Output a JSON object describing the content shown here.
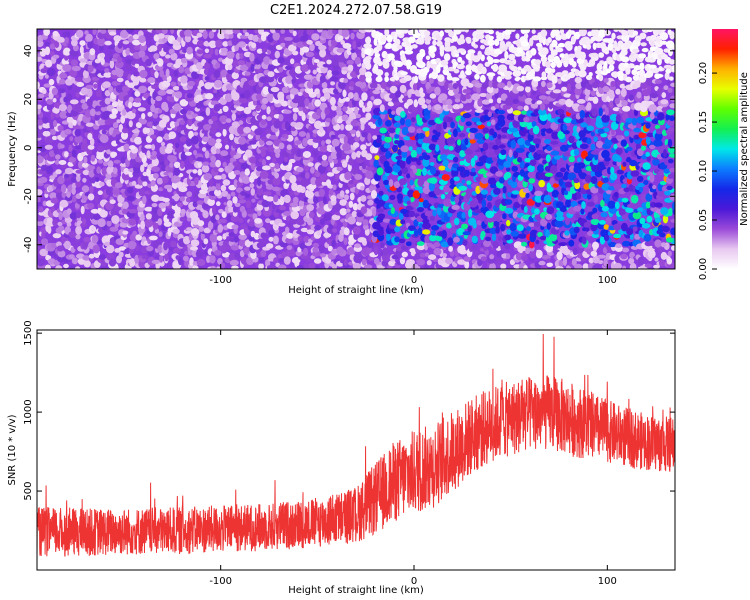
{
  "title": "C2E1.2024.272.07.58.G19",
  "chart_data": [
    {
      "type": "heatmap",
      "xlabel": "Height of straight line (km)",
      "ylabel": "Frequency (Hz)",
      "xlim": [
        -195,
        135
      ],
      "ylim": [
        -50,
        49
      ],
      "x_ticks": [
        -100,
        0,
        100
      ],
      "y_ticks": [
        40,
        20,
        0,
        -20,
        -40
      ],
      "colorbar": {
        "label": "Normalized spectral amplitude",
        "range": [
          0,
          0.245
        ],
        "ticks": [
          "0.00",
          "0.05",
          "0.10",
          "0.15",
          "0.20"
        ],
        "colormap": [
          "#ffffff",
          "#e8c8f0",
          "#9a4ad8",
          "#4b18d8",
          "#1428e8",
          "#0c7cff",
          "#00e8e8",
          "#14f050",
          "#60ff00",
          "#e8ff00",
          "#ffb000",
          "#ff2000",
          "#ff1464"
        ]
      },
      "regions": [
        {
          "x": [
            -195,
            -20
          ],
          "y": [
            -50,
            49
          ],
          "mean_amplitude": 0.03
        },
        {
          "x": [
            -20,
            135
          ],
          "y": [
            -40,
            15
          ],
          "mean_amplitude": 0.08
        },
        {
          "x": [
            -25,
            135
          ],
          "y": [
            28,
            49
          ],
          "mean_amplitude": 0.0
        }
      ]
    },
    {
      "type": "line",
      "xlabel": "Height of straight line (km)",
      "ylabel": "SNR (10 * v/v)",
      "xlim": [
        -195,
        135
      ],
      "ylim": [
        0,
        1520
      ],
      "x_ticks": [
        -100,
        0,
        100
      ],
      "y_ticks": [
        500,
        1000,
        1500
      ],
      "color": "#ee3333",
      "series": [
        {
          "x": [
            -195,
            -160,
            -120,
            -80,
            -50,
            -30,
            -20,
            -10,
            0,
            10,
            20,
            30,
            40,
            50,
            60,
            70,
            80,
            90,
            100,
            110,
            120,
            135
          ],
          "mean": [
            240,
            240,
            250,
            270,
            300,
            350,
            450,
            560,
            620,
            660,
            750,
            850,
            920,
            960,
            990,
            1000,
            960,
            920,
            880,
            840,
            810,
            790
          ],
          "spread": [
            160,
            150,
            150,
            150,
            160,
            180,
            230,
            260,
            270,
            270,
            260,
            250,
            240,
            240,
            240,
            240,
            240,
            220,
            200,
            190,
            180,
            180
          ]
        }
      ]
    }
  ]
}
